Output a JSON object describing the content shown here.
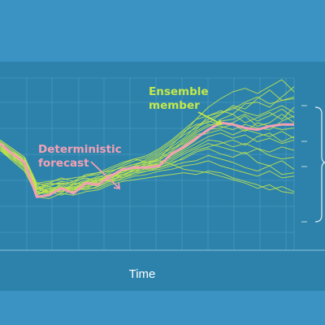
{
  "chart_data": {
    "type": "line",
    "xlabel": "Time",
    "ylabel": "",
    "xlim": [
      0,
      24
    ],
    "ylim": [
      0,
      10
    ],
    "grid": true,
    "colors": {
      "page_background": "#3a93c2",
      "plot_background": "#2d82ab",
      "grid": "#5aaad0",
      "deterministic": "#f2a0b4",
      "ensemble": "#c4e84a",
      "axis_text": "#ffffff"
    },
    "annotations": {
      "ensemble_member": [
        "Ensemble",
        "member"
      ],
      "deterministic_forecast": [
        "Deterministic",
        "forecast"
      ]
    },
    "x": [
      0,
      1,
      2,
      3,
      4,
      5,
      6,
      7,
      8,
      9,
      10,
      11,
      12,
      13,
      14,
      15,
      16,
      17,
      18,
      19,
      20,
      21,
      22,
      23,
      24
    ],
    "series": [
      {
        "name": "Deterministic forecast",
        "role": "deterministic",
        "values": [
          6.2,
          5.6,
          5.1,
          3.1,
          3.2,
          3.6,
          3.3,
          3.9,
          3.8,
          4.3,
          4.7,
          4.8,
          4.8,
          4.9,
          5.6,
          6.0,
          6.5,
          7.0,
          7.4,
          7.3,
          7.1,
          7.0,
          7.2,
          7.3,
          7.3
        ]
      },
      {
        "role": "ensemble",
        "values": [
          6.0,
          5.4,
          4.8,
          3.4,
          3.6,
          3.7,
          3.5,
          3.9,
          4.0,
          4.4,
          4.5,
          4.8,
          4.9,
          5.3,
          6.1,
          6.8,
          7.6,
          8.3,
          8.8,
          9.2,
          9.4,
          9.1,
          9.5,
          9.9,
          9.2
        ]
      },
      {
        "role": "ensemble",
        "values": [
          6.3,
          5.8,
          5.2,
          3.8,
          3.3,
          3.9,
          3.8,
          4.1,
          4.2,
          4.6,
          4.8,
          5.0,
          5.2,
          5.6,
          6.0,
          6.5,
          7.2,
          7.6,
          7.9,
          8.4,
          8.2,
          8.8,
          9.3,
          8.7,
          8.9
        ]
      },
      {
        "role": "ensemble",
        "values": [
          5.8,
          5.2,
          4.6,
          3.2,
          3.5,
          3.4,
          3.6,
          3.8,
          3.9,
          4.1,
          4.6,
          4.7,
          5.0,
          5.2,
          5.8,
          6.4,
          7.0,
          7.8,
          8.1,
          7.9,
          8.5,
          8.6,
          8.3,
          8.9,
          9.5
        ]
      },
      {
        "role": "ensemble",
        "values": [
          6.1,
          5.5,
          5.0,
          3.6,
          3.9,
          3.8,
          4.0,
          4.2,
          4.0,
          4.5,
          4.9,
          5.2,
          5.4,
          5.8,
          6.3,
          6.9,
          7.3,
          7.4,
          7.9,
          8.3,
          8.0,
          7.8,
          8.1,
          8.4,
          8.0
        ]
      },
      {
        "role": "ensemble",
        "values": [
          6.4,
          5.9,
          5.4,
          3.9,
          3.7,
          4.0,
          3.9,
          4.3,
          4.4,
          4.7,
          5.0,
          5.3,
          5.1,
          5.5,
          5.9,
          6.2,
          6.8,
          7.2,
          7.5,
          7.6,
          7.9,
          7.5,
          7.8,
          8.2,
          7.7
        ]
      },
      {
        "role": "ensemble",
        "values": [
          5.9,
          5.3,
          4.7,
          3.3,
          3.4,
          3.5,
          3.3,
          3.7,
          3.8,
          4.2,
          4.4,
          4.6,
          4.9,
          5.0,
          5.6,
          6.1,
          6.7,
          6.9,
          7.6,
          7.9,
          7.4,
          7.7,
          8.0,
          7.6,
          8.3
        ]
      },
      {
        "role": "ensemble",
        "values": [
          6.2,
          5.7,
          5.3,
          3.7,
          3.2,
          3.6,
          3.7,
          3.6,
          3.9,
          4.3,
          4.7,
          4.9,
          5.3,
          5.7,
          6.2,
          6.7,
          7.1,
          7.5,
          7.3,
          7.4,
          7.8,
          7.2,
          7.4,
          7.9,
          7.4
        ]
      },
      {
        "role": "ensemble",
        "values": [
          6.0,
          5.5,
          4.9,
          3.5,
          3.8,
          3.9,
          3.6,
          4.0,
          4.1,
          4.4,
          4.5,
          4.9,
          5.0,
          5.4,
          5.7,
          6.3,
          6.9,
          7.3,
          7.2,
          7.0,
          7.3,
          7.1,
          7.0,
          7.5,
          7.8
        ]
      },
      {
        "role": "ensemble",
        "values": [
          6.3,
          5.6,
          5.1,
          3.4,
          3.6,
          3.3,
          3.9,
          3.8,
          4.2,
          4.0,
          4.3,
          4.7,
          4.8,
          5.1,
          5.5,
          5.9,
          6.4,
          7.0,
          7.1,
          7.3,
          6.9,
          7.4,
          7.2,
          7.0,
          7.1
        ]
      },
      {
        "role": "ensemble",
        "values": [
          5.9,
          5.4,
          4.8,
          3.6,
          3.3,
          3.7,
          3.4,
          3.9,
          3.7,
          4.1,
          4.6,
          4.8,
          5.1,
          5.3,
          5.6,
          6.0,
          6.6,
          6.8,
          7.0,
          6.7,
          7.0,
          6.8,
          6.6,
          6.9,
          6.5
        ]
      },
      {
        "role": "ensemble",
        "values": [
          6.1,
          5.6,
          5.2,
          3.3,
          3.5,
          3.5,
          3.8,
          3.7,
          4.0,
          4.3,
          4.4,
          4.7,
          4.9,
          5.1,
          5.4,
          5.8,
          6.2,
          6.6,
          6.8,
          6.5,
          6.7,
          6.3,
          6.5,
          6.2,
          6.4
        ]
      },
      {
        "role": "ensemble",
        "values": [
          6.2,
          5.7,
          5.0,
          3.7,
          3.4,
          3.8,
          3.5,
          4.0,
          4.3,
          4.2,
          4.6,
          4.9,
          4.7,
          5.0,
          5.3,
          5.7,
          6.0,
          6.4,
          6.3,
          6.0,
          6.2,
          5.9,
          5.7,
          6.0,
          5.8
        ]
      },
      {
        "role": "ensemble",
        "values": [
          5.8,
          5.3,
          4.9,
          3.5,
          3.7,
          3.4,
          3.7,
          3.6,
          3.9,
          4.1,
          4.3,
          4.5,
          4.8,
          4.9,
          5.2,
          5.6,
          5.9,
          6.2,
          6.0,
          5.8,
          5.6,
          5.9,
          5.5,
          5.3,
          5.4
        ]
      },
      {
        "role": "ensemble",
        "values": [
          6.0,
          5.4,
          5.1,
          3.2,
          3.6,
          3.6,
          3.4,
          3.8,
          4.1,
          4.0,
          4.4,
          4.6,
          4.7,
          4.8,
          5.1,
          5.3,
          5.7,
          5.9,
          5.6,
          5.4,
          5.7,
          5.1,
          4.9,
          5.2,
          4.7
        ]
      },
      {
        "role": "ensemble",
        "values": [
          6.3,
          5.8,
          5.3,
          3.6,
          3.8,
          3.9,
          3.8,
          4.0,
          3.9,
          4.4,
          4.2,
          4.4,
          4.6,
          4.7,
          4.9,
          5.1,
          5.2,
          5.5,
          5.3,
          5.1,
          4.8,
          4.6,
          4.9,
          4.4,
          4.5
        ]
      },
      {
        "role": "ensemble",
        "values": [
          6.1,
          5.5,
          4.9,
          3.4,
          3.2,
          3.5,
          3.6,
          3.5,
          3.7,
          4.0,
          4.1,
          4.3,
          4.4,
          4.6,
          4.7,
          4.9,
          5.0,
          5.2,
          4.9,
          4.7,
          4.5,
          4.3,
          4.6,
          4.2,
          4.3
        ]
      },
      {
        "role": "ensemble",
        "values": [
          5.9,
          5.2,
          4.6,
          3.9,
          4.0,
          4.1,
          4.2,
          4.3,
          4.5,
          4.6,
          4.8,
          5.0,
          5.1,
          5.2,
          5.0,
          4.7,
          4.6,
          4.5,
          4.3,
          4.1,
          3.9,
          3.6,
          3.8,
          3.4,
          3.3
        ]
      },
      {
        "role": "ensemble",
        "values": [
          6.2,
          5.7,
          5.2,
          3.1,
          3.0,
          3.3,
          3.2,
          3.4,
          3.5,
          3.8,
          4.0,
          4.1,
          4.2,
          4.3,
          4.4,
          4.5,
          4.4,
          4.6,
          4.5,
          4.2,
          4.0,
          3.8,
          3.5,
          3.7,
          3.4
        ]
      },
      {
        "role": "ensemble",
        "values": [
          6.0,
          5.6,
          5.0,
          3.3,
          3.4,
          3.2,
          3.5,
          3.6,
          3.6,
          3.9,
          4.2,
          4.5,
          4.6,
          4.8,
          5.0,
          5.4,
          5.8,
          6.0,
          6.2,
          6.4,
          6.1,
          6.6,
          6.8,
          6.3,
          6.6
        ]
      },
      {
        "role": "ensemble",
        "values": [
          6.4,
          5.9,
          5.4,
          3.8,
          3.9,
          4.2,
          4.0,
          4.4,
          4.5,
          4.8,
          5.1,
          5.3,
          5.5,
          5.9,
          6.4,
          7.0,
          7.6,
          7.8,
          8.0,
          8.2,
          8.6,
          8.9,
          8.5,
          8.7,
          8.8
        ]
      }
    ]
  }
}
